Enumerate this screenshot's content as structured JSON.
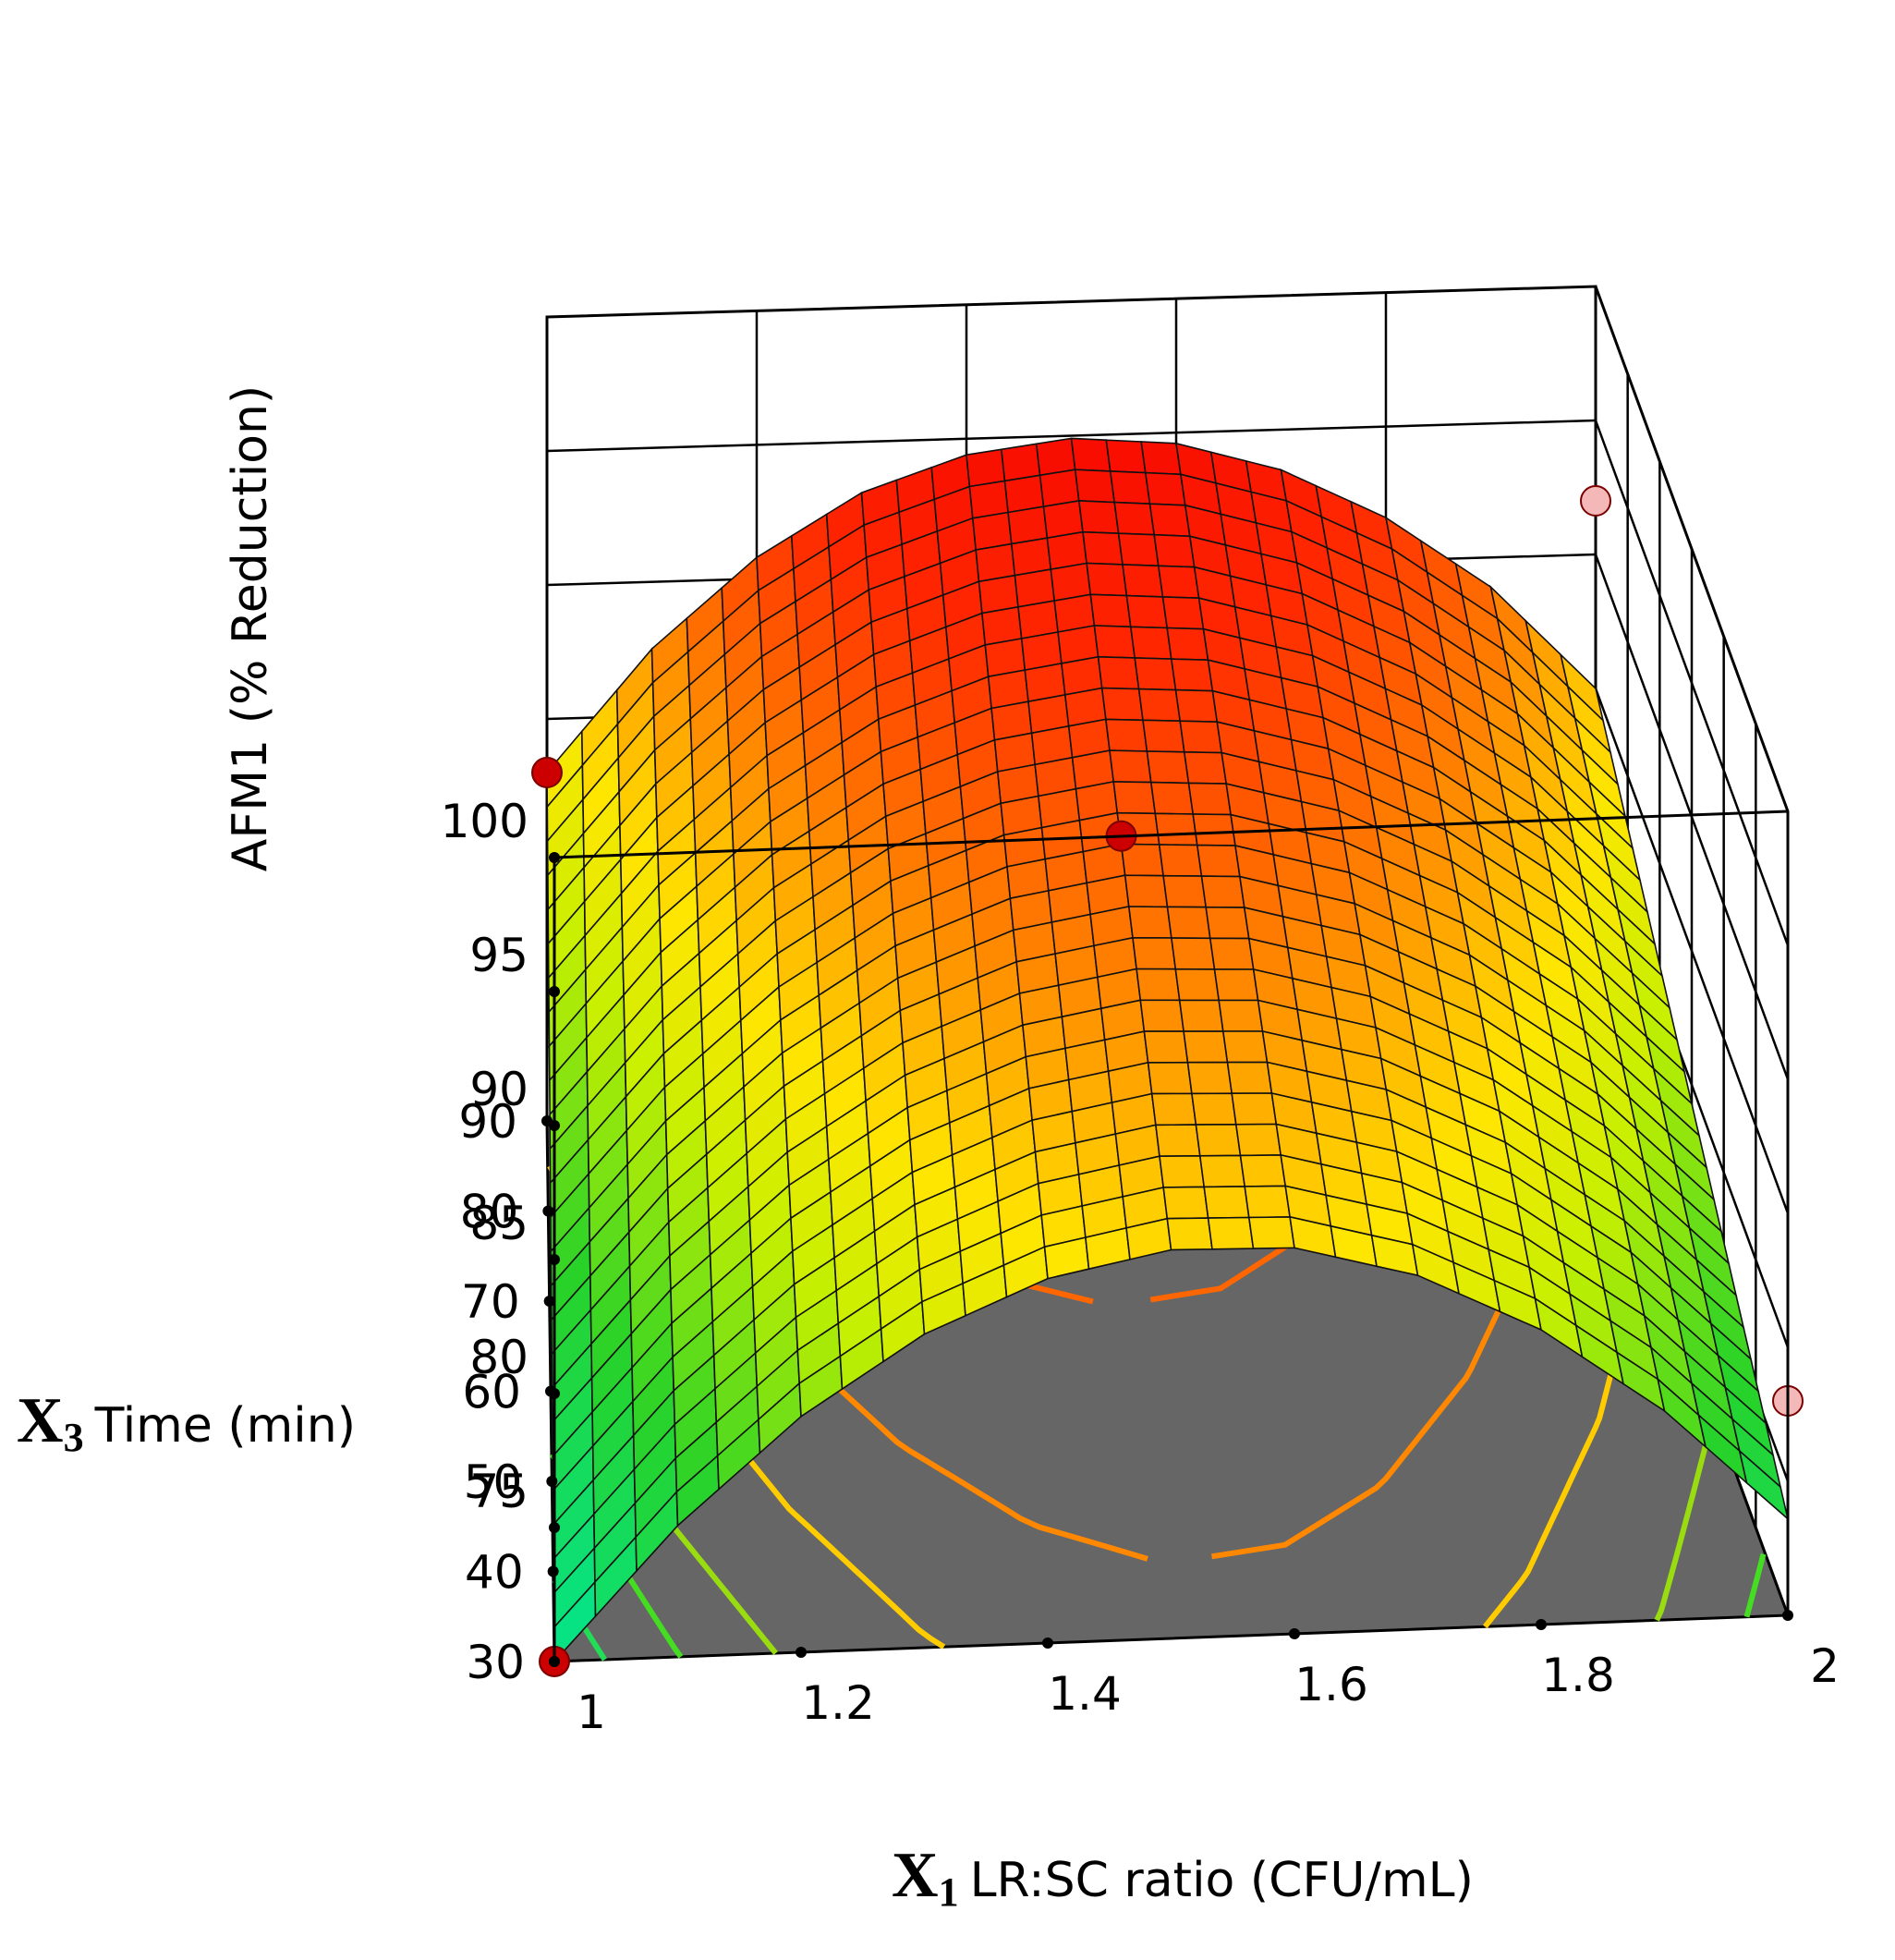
{
  "chart_data": {
    "type": "surface3d",
    "title": "",
    "zlabel": "AFM1 (% Reduction)",
    "x_axis": {
      "symbol": "X",
      "subscript": "1",
      "label": "LR:SC ratio (CFU/mL)",
      "range": [
        1,
        2
      ],
      "ticks": [
        "1",
        "1.2",
        "1.4",
        "1.6",
        "1.8",
        "2"
      ]
    },
    "y_axis": {
      "symbol": "X",
      "subscript": "3",
      "label": "Time (min)",
      "range": [
        30,
        90
      ],
      "ticks": [
        "30",
        "40",
        "50",
        "60",
        "70",
        "80",
        "90"
      ]
    },
    "z_axis": {
      "range": [
        70,
        100
      ],
      "ticks": [
        "75",
        "80",
        "85",
        "90",
        "95",
        "100"
      ]
    },
    "surface": {
      "x": [
        1.0,
        1.1,
        1.2,
        1.3,
        1.4,
        1.5,
        1.6,
        1.7,
        1.8,
        1.9,
        2.0
      ],
      "z_at_time_30": [
        70.0,
        74.9,
        78.8,
        81.7,
        83.6,
        84.5,
        84.4,
        83.2,
        81.0,
        77.8,
        73.6
      ],
      "z_at_time_90": [
        83.0,
        87.5,
        90.8,
        93.1,
        94.4,
        94.9,
        94.6,
        93.5,
        91.6,
        88.9,
        85.0
      ]
    },
    "design_points": [
      {
        "x": 1.0,
        "time": 30,
        "z": 70,
        "color": "#cc0000"
      },
      {
        "x": 1.0,
        "time": 90,
        "z": 83,
        "color": "#cc0000"
      },
      {
        "x": 1.5,
        "time": 60,
        "z": 90,
        "color": "#cc0000"
      },
      {
        "x": 2.0,
        "time": 30,
        "z": 78,
        "color": "#f4b8b8"
      },
      {
        "x": 2.0,
        "time": 90,
        "z": 92,
        "color": "#f4b8b8"
      }
    ],
    "contours": [
      {
        "level": 72,
        "color": "#22dd55"
      },
      {
        "level": 75,
        "color": "#44dd22"
      },
      {
        "level": 78,
        "color": "#99dd11"
      },
      {
        "level": 82,
        "color": "#ffcc00"
      },
      {
        "level": 86,
        "color": "#ff8800"
      },
      {
        "level": 91,
        "color": "#ff6600"
      }
    ]
  }
}
